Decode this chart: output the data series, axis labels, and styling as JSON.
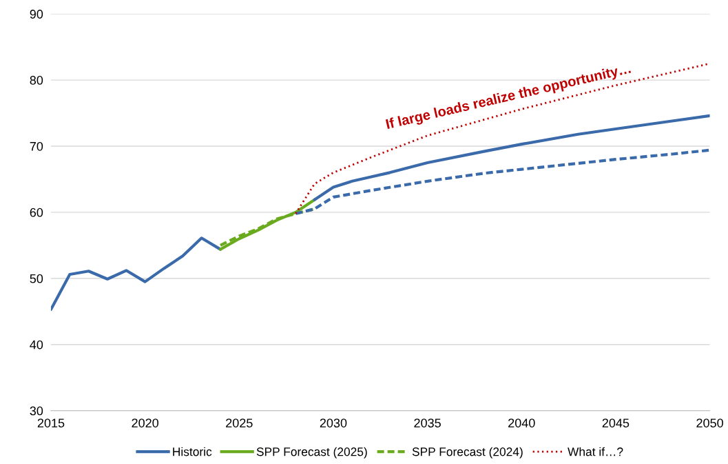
{
  "chart_data": {
    "type": "line",
    "xlim": [
      2015,
      2050
    ],
    "xticks": [
      2015,
      2020,
      2025,
      2030,
      2035,
      2040,
      2045,
      2050
    ],
    "ylim": [
      30,
      90
    ],
    "yticks": [
      30,
      40,
      50,
      60,
      70,
      80,
      90
    ],
    "grid": "y",
    "legend": "bottom",
    "marker": "none",
    "annotations": [
      "If large loads realize the opportunity…"
    ],
    "series": [
      {
        "name": "Historic",
        "color": "#3a6aaa",
        "line_style": "solid",
        "x": [
          2015,
          2016,
          2017,
          2018,
          2019,
          2020,
          2021,
          2022,
          2023,
          2024
        ],
        "values": [
          45.3,
          50.6,
          51.1,
          49.9,
          51.2,
          49.5,
          51.5,
          53.4,
          56.1,
          54.4
        ]
      },
      {
        "name": "SPP Forecast (2025)",
        "color": "#6aaa1e",
        "line_style": "solid",
        "x": [
          2024,
          2025,
          2026,
          2027,
          2028,
          2029
        ],
        "values": [
          54.4,
          56.0,
          57.3,
          58.8,
          60.0,
          61.9
        ]
      },
      {
        "name": "SPP Forecast (2024)",
        "color": "#6aaa1e",
        "line_style": "dashed",
        "x": [
          2024,
          2025,
          2026,
          2027,
          2028,
          2029
        ],
        "values": [
          55.0,
          56.4,
          57.5,
          59.0,
          59.8,
          60.5
        ]
      },
      {
        "color": "#3a6aaa",
        "line_style": "solid",
        "x": [
          2029,
          2030,
          2031,
          2033,
          2035,
          2038,
          2040,
          2043,
          2045,
          2048,
          2050
        ],
        "values": [
          61.9,
          63.8,
          64.7,
          66.0,
          67.5,
          69.2,
          70.3,
          71.8,
          72.6,
          73.8,
          74.6
        ]
      },
      {
        "color": "#3a6aaa",
        "line_style": "dashed",
        "x": [
          2028,
          2029,
          2030,
          2032,
          2035,
          2038,
          2040,
          2043,
          2045,
          2048,
          2050
        ],
        "values": [
          59.8,
          60.5,
          62.3,
          63.3,
          64.7,
          65.9,
          66.5,
          67.4,
          68.0,
          68.8,
          69.4
        ]
      },
      {
        "name": "What if…?",
        "color": "#c00000",
        "line_style": "dotted",
        "x": [
          2028,
          2029,
          2030,
          2032,
          2035,
          2040,
          2045,
          2050
        ],
        "values": [
          59.8,
          64.3,
          66.0,
          68.3,
          71.6,
          75.6,
          79.2,
          82.5
        ]
      }
    ]
  }
}
